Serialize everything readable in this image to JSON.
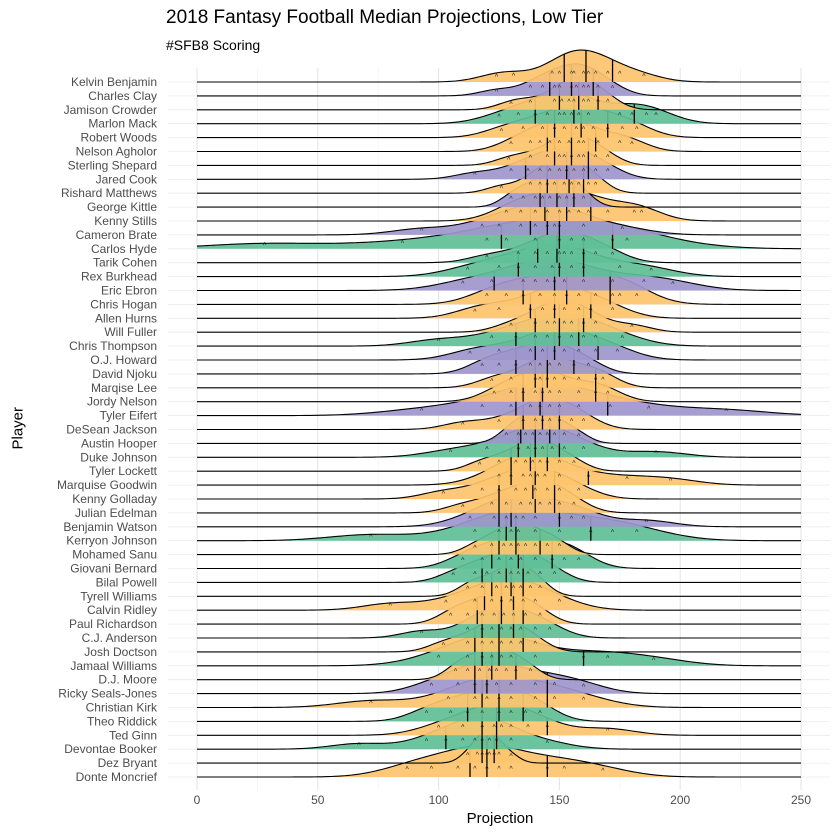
{
  "chart_data": {
    "type": "ridgeline",
    "title": "2018 Fantasy Football Median Projections, Low Tier",
    "subtitle": "#SFB8 Scoring",
    "xlabel": "Projection",
    "ylabel": "Player",
    "xlim": [
      0,
      250
    ],
    "x_ticks": [
      0,
      50,
      100,
      150,
      200,
      250
    ],
    "grid": true,
    "position_colors": {
      "WR": "#fdc46c",
      "TE": "#9e96cc",
      "RB": "#5fbf97"
    },
    "players": [
      {
        "name": "Kelvin Benjamin",
        "pos": "WR",
        "median": 161,
        "q1": 152,
        "q3": 172,
        "points": [
          124,
          131,
          147,
          150,
          155,
          156,
          160,
          162,
          165,
          170,
          175,
          185
        ]
      },
      {
        "name": "Charles Clay",
        "pos": "TE",
        "median": 155,
        "q1": 146,
        "q3": 164,
        "points": [
          124,
          138,
          143,
          148,
          150,
          155,
          157,
          160,
          162,
          166,
          172
        ]
      },
      {
        "name": "Jamison Crowder",
        "pos": "WR",
        "median": 158,
        "q1": 150,
        "q3": 166,
        "points": [
          130,
          138,
          148,
          151,
          154,
          156,
          160,
          162,
          166,
          170
        ]
      },
      {
        "name": "Marlon Mack",
        "pos": "RB",
        "median": 156,
        "q1": 140,
        "q3": 181,
        "points": [
          125,
          133,
          140,
          145,
          150,
          152,
          155,
          158,
          162,
          175,
          180,
          186,
          190
        ]
      },
      {
        "name": "Robert Woods",
        "pos": "WR",
        "median": 159,
        "q1": 148,
        "q3": 170,
        "points": [
          126,
          135,
          143,
          148,
          152,
          157,
          160,
          164,
          170,
          176,
          182
        ]
      },
      {
        "name": "Nelson Agholor",
        "pos": "WR",
        "median": 155,
        "q1": 145,
        "q3": 165,
        "points": [
          130,
          138,
          142,
          146,
          150,
          154,
          158,
          160,
          166,
          175,
          180
        ]
      },
      {
        "name": "Sterling Shepard",
        "pos": "WR",
        "median": 155,
        "q1": 148,
        "q3": 162,
        "points": [
          129,
          138,
          145,
          150,
          152,
          155,
          158,
          160,
          165,
          170
        ]
      },
      {
        "name": "Jared Cook",
        "pos": "TE",
        "median": 153,
        "q1": 136,
        "q3": 162,
        "points": [
          115,
          130,
          137,
          142,
          146,
          150,
          153,
          156,
          160,
          165,
          170
        ]
      },
      {
        "name": "Rishard Matthews",
        "pos": "WR",
        "median": 154,
        "q1": 145,
        "q3": 160,
        "points": [
          126,
          138,
          142,
          145,
          148,
          152,
          155,
          158,
          162,
          165
        ]
      },
      {
        "name": "George Kittle",
        "pos": "TE",
        "median": 149,
        "q1": 142,
        "q3": 156,
        "points": [
          130,
          135,
          140,
          143,
          146,
          150,
          153,
          156,
          160
        ]
      },
      {
        "name": "Kenny Stills",
        "pos": "WR",
        "median": 153,
        "q1": 144,
        "q3": 163,
        "points": [
          128,
          134,
          140,
          145,
          150,
          154,
          158,
          162,
          170,
          181,
          184
        ]
      },
      {
        "name": "Cameron Brate",
        "pos": "TE",
        "median": 145,
        "q1": 138,
        "q3": 150,
        "points": [
          93,
          118,
          125,
          134,
          140,
          145,
          148,
          150,
          160,
          176
        ]
      },
      {
        "name": "Carlos Hyde",
        "pos": "RB",
        "median": 150,
        "q1": 126,
        "q3": 172,
        "points": [
          28,
          85,
          120,
          128,
          140,
          150,
          155,
          160,
          172,
          178
        ]
      },
      {
        "name": "Tarik Cohen",
        "pos": "RB",
        "median": 149,
        "q1": 141,
        "q3": 160,
        "points": [
          120,
          133,
          140,
          145,
          150,
          152,
          155,
          160,
          165,
          172
        ]
      },
      {
        "name": "Rex Burkhead",
        "pos": "RB",
        "median": 150,
        "q1": 133,
        "q3": 160,
        "points": [
          112,
          125,
          133,
          140,
          147,
          150,
          155,
          160,
          175,
          188
        ]
      },
      {
        "name": "Eric Ebron",
        "pos": "TE",
        "median": 148,
        "q1": 123,
        "q3": 171,
        "points": [
          110,
          122,
          135,
          140,
          145,
          148,
          152,
          160,
          172,
          185,
          197
        ]
      },
      {
        "name": "Chris Hogan",
        "pos": "WR",
        "median": 153,
        "q1": 135,
        "q3": 171,
        "points": [
          120,
          128,
          135,
          142,
          148,
          153,
          158,
          165,
          172,
          175,
          182
        ]
      },
      {
        "name": "Allen Hurns",
        "pos": "WR",
        "median": 148,
        "q1": 138,
        "q3": 163,
        "points": [
          115,
          125,
          138,
          143,
          148,
          152,
          158,
          163,
          172
        ]
      },
      {
        "name": "Will Fuller",
        "pos": "WR",
        "median": 150,
        "q1": 140,
        "q3": 160,
        "points": [
          130,
          140,
          145,
          148,
          152,
          155,
          160,
          165,
          180
        ]
      },
      {
        "name": "Chris Thompson",
        "pos": "RB",
        "median": 150,
        "q1": 132,
        "q3": 158,
        "points": [
          100,
          122,
          132,
          140,
          145,
          150,
          155,
          160,
          165,
          176
        ]
      },
      {
        "name": "O.J. Howard",
        "pos": "TE",
        "median": 148,
        "q1": 140,
        "q3": 166,
        "points": [
          113,
          125,
          138,
          143,
          148,
          152,
          158,
          165,
          174
        ]
      },
      {
        "name": "David Njoku",
        "pos": "TE",
        "median": 145,
        "q1": 132,
        "q3": 156,
        "points": [
          118,
          125,
          132,
          138,
          142,
          146,
          150,
          156,
          162
        ]
      },
      {
        "name": "Marqise Lee",
        "pos": "WR",
        "median": 145,
        "q1": 140,
        "q3": 165,
        "points": [
          122,
          130,
          140,
          142,
          145,
          148,
          152,
          158,
          165,
          168
        ]
      },
      {
        "name": "Jordy Nelson",
        "pos": "WR",
        "median": 143,
        "q1": 135,
        "q3": 165,
        "points": [
          123,
          130,
          135,
          140,
          143,
          146,
          150,
          158,
          165,
          170
        ]
      },
      {
        "name": "Tyler Eifert",
        "pos": "TE",
        "median": 142,
        "q1": 132,
        "q3": 170,
        "points": [
          93,
          118,
          130,
          138,
          142,
          146,
          150,
          158,
          171,
          187,
          219
        ]
      },
      {
        "name": "DeSean Jackson",
        "pos": "WR",
        "median": 143,
        "q1": 135,
        "q3": 150,
        "points": [
          110,
          125,
          135,
          140,
          143,
          146,
          150,
          155,
          160
        ]
      },
      {
        "name": "Austin Hooper",
        "pos": "TE",
        "median": 140,
        "q1": 134,
        "q3": 146,
        "points": [
          128,
          133,
          136,
          139,
          142,
          145,
          148,
          152,
          158
        ]
      },
      {
        "name": "Duke Johnson",
        "pos": "RB",
        "median": 140,
        "q1": 133,
        "q3": 150,
        "points": [
          105,
          120,
          133,
          137,
          140,
          143,
          147,
          152,
          160,
          190
        ]
      },
      {
        "name": "Tyler Lockett",
        "pos": "WR",
        "median": 138,
        "q1": 130,
        "q3": 145,
        "points": [
          117,
          125,
          132,
          136,
          139,
          142,
          145,
          150,
          156
        ]
      },
      {
        "name": "Marquise Goodwin",
        "pos": "WR",
        "median": 140,
        "q1": 130,
        "q3": 162,
        "points": [
          125,
          130,
          135,
          138,
          141,
          144,
          150,
          162,
          178,
          196
        ]
      },
      {
        "name": "Kenny Golladay",
        "pos": "WR",
        "median": 139,
        "q1": 125,
        "q3": 148,
        "points": [
          102,
          118,
          125,
          132,
          136,
          140,
          145,
          150,
          158
        ]
      },
      {
        "name": "Julian Edelman",
        "pos": "WR",
        "median": 140,
        "q1": 125,
        "q3": 148,
        "points": [
          110,
          122,
          128,
          134,
          138,
          142,
          146,
          150,
          156
        ]
      },
      {
        "name": "Benjamin Watson",
        "pos": "TE",
        "median": 130,
        "q1": 125,
        "q3": 150,
        "points": [
          113,
          123,
          128,
          132,
          135,
          140,
          150,
          155,
          160,
          186
        ]
      },
      {
        "name": "Kerryon Johnson",
        "pos": "RB",
        "median": 132,
        "q1": 128,
        "q3": 163,
        "points": [
          72,
          115,
          125,
          130,
          133,
          140,
          150,
          163,
          172,
          182
        ]
      },
      {
        "name": "Mohamed Sanu",
        "pos": "WR",
        "median": 132,
        "q1": 125,
        "q3": 142,
        "points": [
          115,
          122,
          127,
          130,
          133,
          136,
          140,
          145,
          150
        ]
      },
      {
        "name": "Giovani Bernard",
        "pos": "RB",
        "median": 133,
        "q1": 122,
        "q3": 147,
        "points": [
          110,
          118,
          125,
          130,
          134,
          140,
          147,
          152,
          158
        ]
      },
      {
        "name": "Bilal Powell",
        "pos": "RB",
        "median": 128,
        "q1": 118,
        "q3": 135,
        "points": [
          106,
          115,
          120,
          125,
          130,
          133,
          137,
          142,
          148
        ]
      },
      {
        "name": "Tyrell Williams",
        "pos": "WR",
        "median": 130,
        "q1": 122,
        "q3": 135,
        "points": [
          112,
          118,
          124,
          128,
          131,
          134,
          138,
          142
        ]
      },
      {
        "name": "Calvin Ridley",
        "pos": "WR",
        "median": 126,
        "q1": 119,
        "q3": 131,
        "points": [
          80,
          103,
          115,
          122,
          126,
          130,
          135,
          140,
          150
        ]
      },
      {
        "name": "Paul Richardson",
        "pos": "WR",
        "median": 126,
        "q1": 116,
        "q3": 135,
        "points": [
          105,
          112,
          118,
          123,
          127,
          131,
          136,
          142
        ]
      },
      {
        "name": "C.J. Anderson",
        "pos": "RB",
        "median": 125,
        "q1": 118,
        "q3": 131,
        "points": [
          93,
          112,
          118,
          122,
          126,
          130,
          134,
          140,
          146
        ]
      },
      {
        "name": "Josh Doctson",
        "pos": "WR",
        "median": 125,
        "q1": 115,
        "q3": 135,
        "points": [
          102,
          112,
          118,
          122,
          126,
          130,
          134,
          140
        ]
      },
      {
        "name": "Jamaal Williams",
        "pos": "RB",
        "median": 125,
        "q1": 118,
        "q3": 160,
        "points": [
          100,
          112,
          118,
          122,
          126,
          130,
          140,
          160,
          170,
          189
        ]
      },
      {
        "name": "D.J. Moore",
        "pos": "WR",
        "median": 122,
        "q1": 115,
        "q3": 132,
        "points": [
          107,
          112,
          117,
          121,
          124,
          128,
          132,
          138
        ]
      },
      {
        "name": "Ricky Seals-Jones",
        "pos": "TE",
        "median": 120,
        "q1": 115,
        "q3": 145,
        "points": [
          97,
          108,
          115,
          120,
          124,
          130,
          140,
          148,
          160
        ]
      },
      {
        "name": "Christian Kirk",
        "pos": "WR",
        "median": 125,
        "q1": 118,
        "q3": 145,
        "points": [
          72,
          104,
          115,
          120,
          125,
          130,
          140,
          148,
          160
        ]
      },
      {
        "name": "Theo Riddick",
        "pos": "RB",
        "median": 125,
        "q1": 112,
        "q3": 135,
        "points": [
          95,
          105,
          112,
          118,
          125,
          130,
          136,
          142
        ]
      },
      {
        "name": "Ted Ginn",
        "pos": "WR",
        "median": 124,
        "q1": 118,
        "q3": 145,
        "points": [
          100,
          110,
          118,
          123,
          126,
          130,
          137,
          145,
          170
        ]
      },
      {
        "name": "Devontae Booker",
        "pos": "RB",
        "median": 118,
        "q1": 103,
        "q3": 124,
        "points": [
          67,
          95,
          103,
          110,
          115,
          118,
          121,
          124,
          130,
          145
        ]
      },
      {
        "name": "Dez Bryant",
        "pos": "WR",
        "median": 120,
        "q1": 118,
        "q3": 123,
        "points": [
          112,
          116,
          118,
          120,
          121,
          123,
          125,
          130
        ]
      },
      {
        "name": "Donte Moncrief",
        "pos": "WR",
        "median": 120,
        "q1": 113,
        "q3": 145,
        "points": [
          87,
          97,
          108,
          115,
          120,
          125,
          130,
          145,
          152,
          168
        ]
      }
    ]
  }
}
